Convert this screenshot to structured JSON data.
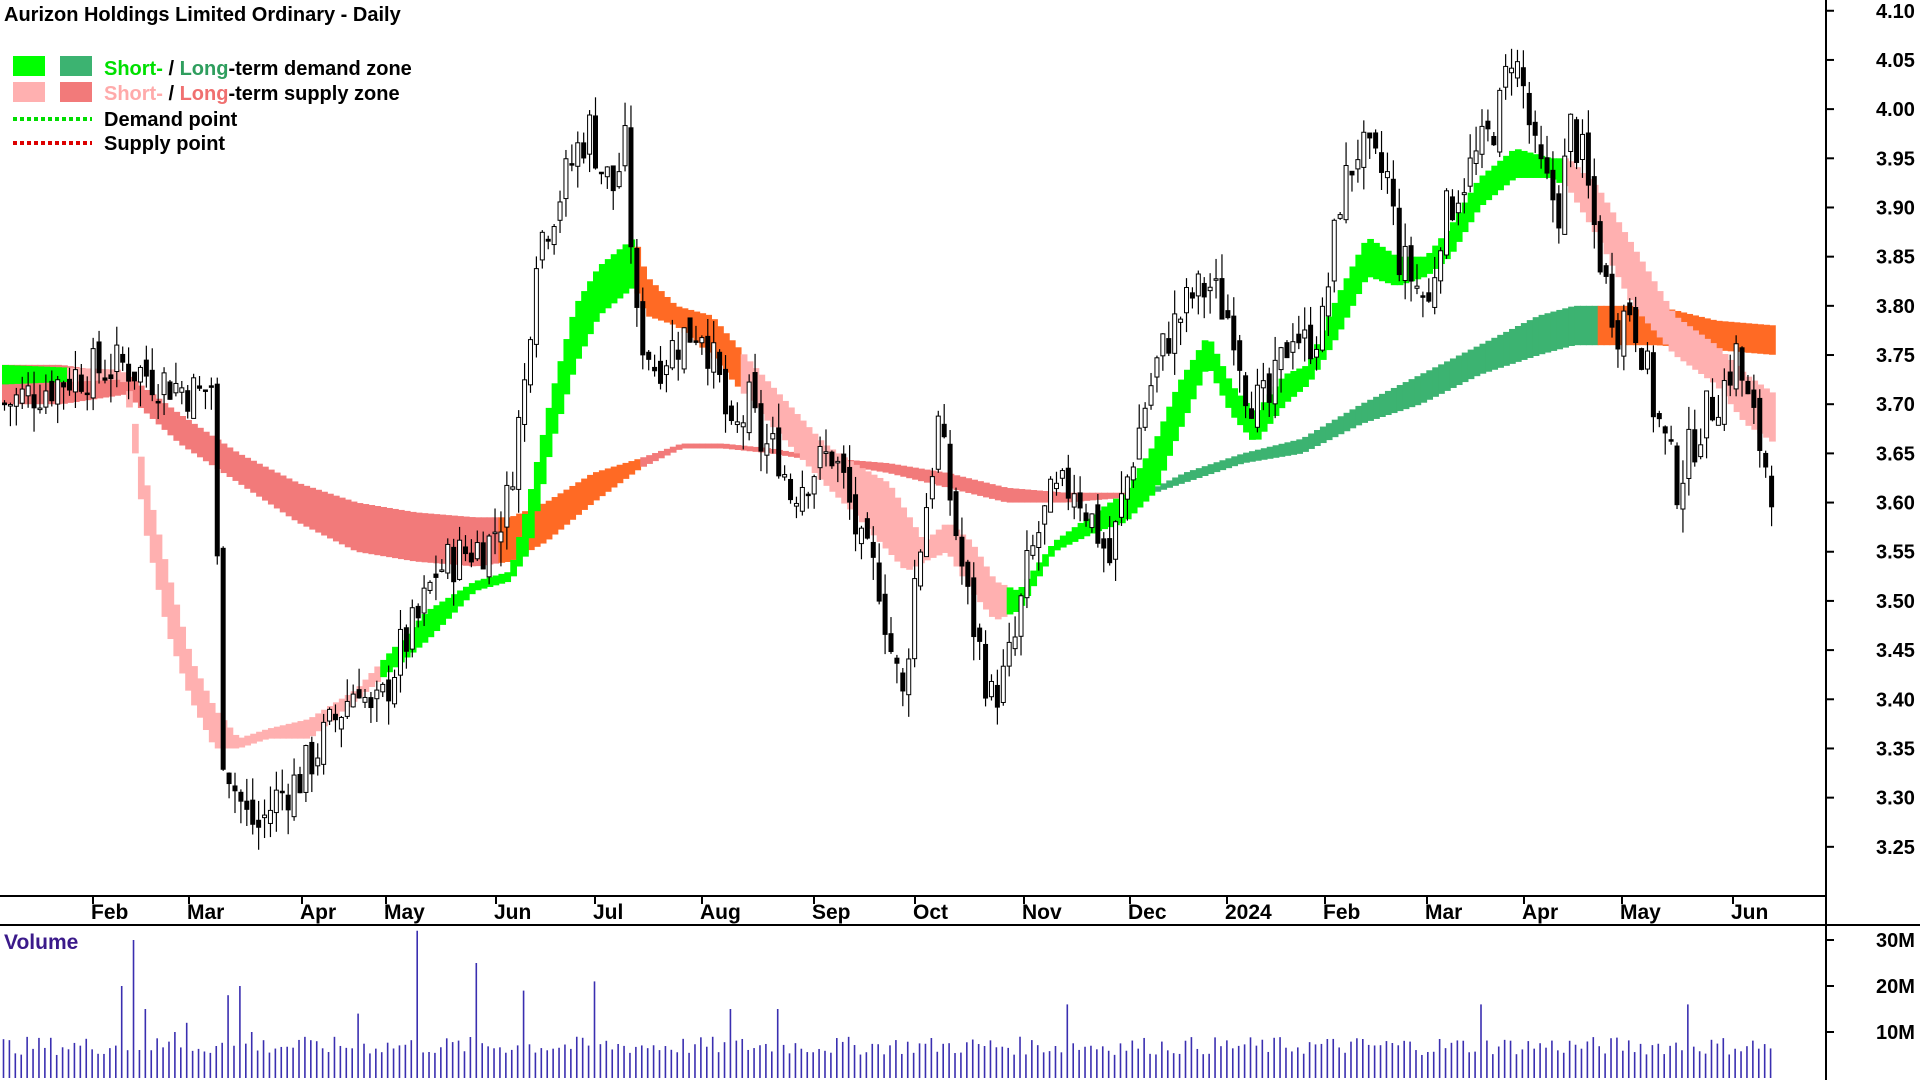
{
  "chart_data": {
    "type": "candlestick",
    "title": "Aurizon Holdings Limited Ordinary - Daily",
    "legend": {
      "placement": "top-left",
      "items": [
        {
          "short": "Short-",
          "sep": " / ",
          "long": "Long",
          "rest": "-term demand zone",
          "colors": [
            "#00ff00",
            "#3cb371"
          ]
        },
        {
          "short": "Short-",
          "sep": " / ",
          "long": "Long",
          "rest": "-term supply zone",
          "colors": [
            "#ffb0b0",
            "#f27a7a"
          ]
        },
        {
          "label": "Demand point",
          "color": "#00dd00"
        },
        {
          "label": "Supply point",
          "color": "#dd0000"
        }
      ]
    },
    "y_axis": {
      "side": "right",
      "ylim": [
        3.2,
        4.12
      ],
      "ticks": [
        "4.10",
        "4.05",
        "4.00",
        "3.95",
        "3.90",
        "3.85",
        "3.80",
        "3.75",
        "3.70",
        "3.65",
        "3.60",
        "3.55",
        "3.50",
        "3.45",
        "3.40",
        "3.35",
        "3.30",
        "3.25"
      ]
    },
    "x_axis": {
      "ticks": [
        "Feb",
        "Mar",
        "Apr",
        "May",
        "Jun",
        "Jul",
        "Aug",
        "Sep",
        "Oct",
        "Nov",
        "Dec",
        "2024",
        "Feb",
        "Mar",
        "Apr",
        "May",
        "Jun"
      ]
    },
    "close_path": [
      [
        0,
        3.7
      ],
      [
        12,
        3.73
      ],
      [
        20,
        3.74
      ],
      [
        33,
        3.71
      ],
      [
        35,
        3.72
      ],
      [
        37,
        3.35
      ],
      [
        39,
        3.31
      ],
      [
        41,
        3.28
      ],
      [
        43,
        3.27
      ],
      [
        46,
        3.3
      ],
      [
        50,
        3.32
      ],
      [
        56,
        3.38
      ],
      [
        60,
        3.42
      ],
      [
        62,
        3.38
      ],
      [
        64,
        3.4
      ],
      [
        67,
        3.45
      ],
      [
        70,
        3.48
      ],
      [
        73,
        3.53
      ],
      [
        78,
        3.55
      ],
      [
        82,
        3.56
      ],
      [
        85,
        3.6
      ],
      [
        88,
        3.72
      ],
      [
        90,
        3.86
      ],
      [
        93,
        3.9
      ],
      [
        95,
        3.93
      ],
      [
        97,
        3.96
      ],
      [
        99,
        3.98
      ],
      [
        101,
        3.94
      ],
      [
        103,
        3.92
      ],
      [
        105,
        3.96
      ],
      [
        107,
        3.78
      ],
      [
        110,
        3.74
      ],
      [
        115,
        3.77
      ],
      [
        118,
        3.78
      ],
      [
        121,
        3.72
      ],
      [
        123,
        3.66
      ],
      [
        126,
        3.7
      ],
      [
        128,
        3.66
      ],
      [
        131,
        3.65
      ],
      [
        133,
        3.61
      ],
      [
        136,
        3.63
      ],
      [
        140,
        3.65
      ],
      [
        142,
        3.62
      ],
      [
        145,
        3.55
      ],
      [
        148,
        3.52
      ],
      [
        150,
        3.45
      ],
      [
        152,
        3.4
      ],
      [
        154,
        3.52
      ],
      [
        156,
        3.6
      ],
      [
        158,
        3.68
      ],
      [
        161,
        3.57
      ],
      [
        163,
        3.5
      ],
      [
        165,
        3.45
      ],
      [
        167,
        3.4
      ],
      [
        169,
        3.42
      ],
      [
        171,
        3.46
      ],
      [
        173,
        3.53
      ],
      [
        175,
        3.57
      ],
      [
        177,
        3.6
      ],
      [
        181,
        3.62
      ],
      [
        185,
        3.57
      ],
      [
        187,
        3.54
      ],
      [
        189,
        3.6
      ],
      [
        191,
        3.65
      ],
      [
        193,
        3.7
      ],
      [
        195,
        3.74
      ],
      [
        197,
        3.77
      ],
      [
        199,
        3.79
      ],
      [
        201,
        3.81
      ],
      [
        204,
        3.82
      ],
      [
        206,
        3.8
      ],
      [
        208,
        3.78
      ],
      [
        210,
        3.72
      ],
      [
        212,
        3.7
      ],
      [
        214,
        3.7
      ],
      [
        216,
        3.74
      ],
      [
        218,
        3.78
      ],
      [
        220,
        3.76
      ],
      [
        223,
        3.78
      ],
      [
        226,
        3.91
      ],
      [
        229,
        3.96
      ],
      [
        232,
        3.94
      ],
      [
        234,
        3.93
      ],
      [
        236,
        3.85
      ],
      [
        239,
        3.82
      ],
      [
        241,
        3.8
      ],
      [
        243,
        3.88
      ],
      [
        246,
        3.92
      ],
      [
        249,
        3.95
      ],
      [
        251,
        3.97
      ],
      [
        253,
        4.0
      ],
      [
        255,
        4.06
      ],
      [
        257,
        4.02
      ],
      [
        259,
        3.95
      ],
      [
        261,
        3.92
      ],
      [
        263,
        3.9
      ],
      [
        265,
        3.98
      ],
      [
        267,
        3.95
      ],
      [
        269,
        3.88
      ],
      [
        271,
        3.82
      ],
      [
        273,
        3.78
      ],
      [
        275,
        3.8
      ],
      [
        277,
        3.76
      ],
      [
        279,
        3.7
      ],
      [
        281,
        3.66
      ],
      [
        283,
        3.62
      ],
      [
        285,
        3.65
      ],
      [
        287,
        3.68
      ],
      [
        289,
        3.7
      ],
      [
        291,
        3.72
      ],
      [
        293,
        3.75
      ],
      [
        295,
        3.7
      ],
      [
        297,
        3.66
      ],
      [
        299,
        3.62
      ]
    ],
    "short_zone": {
      "segments": [
        {
          "from": 0,
          "to": 11,
          "kind": "demand"
        },
        {
          "from": 11,
          "to": 36,
          "kind": "supply"
        },
        {
          "from": 36,
          "to": 64,
          "kind": "supply"
        },
        {
          "from": 64,
          "to": 107,
          "kind": "demand"
        },
        {
          "from": 107,
          "to": 125,
          "kind": "mixed"
        },
        {
          "from": 125,
          "to": 170,
          "kind": "supply"
        },
        {
          "from": 170,
          "to": 212,
          "kind": "demand"
        },
        {
          "from": 212,
          "to": 229,
          "kind": "demand"
        },
        {
          "from": 229,
          "to": 264,
          "kind": "demand"
        },
        {
          "from": 264,
          "to": 300,
          "kind": "supply"
        }
      ],
      "upper": [
        [
          0,
          3.74
        ],
        [
          20,
          3.735
        ],
        [
          21,
          3.73
        ],
        [
          24,
          3.63
        ],
        [
          28,
          3.53
        ],
        [
          32,
          3.44
        ],
        [
          36,
          3.39
        ],
        [
          40,
          3.36
        ],
        [
          45,
          3.37
        ],
        [
          52,
          3.38
        ],
        [
          60,
          3.41
        ],
        [
          66,
          3.45
        ],
        [
          72,
          3.49
        ],
        [
          80,
          3.52
        ],
        [
          86,
          3.53
        ],
        [
          89,
          3.6
        ],
        [
          93,
          3.71
        ],
        [
          97,
          3.8
        ],
        [
          101,
          3.84
        ],
        [
          107,
          3.87
        ],
        [
          109,
          3.83
        ],
        [
          114,
          3.8
        ],
        [
          120,
          3.79
        ],
        [
          127,
          3.74
        ],
        [
          133,
          3.7
        ],
        [
          139,
          3.66
        ],
        [
          144,
          3.64
        ],
        [
          150,
          3.62
        ],
        [
          153,
          3.59
        ],
        [
          156,
          3.56
        ],
        [
          160,
          3.58
        ],
        [
          164,
          3.56
        ],
        [
          168,
          3.52
        ],
        [
          172,
          3.51
        ],
        [
          178,
          3.56
        ],
        [
          185,
          3.59
        ],
        [
          190,
          3.61
        ],
        [
          195,
          3.66
        ],
        [
          199,
          3.72
        ],
        [
          204,
          3.77
        ],
        [
          208,
          3.72
        ],
        [
          212,
          3.69
        ],
        [
          217,
          3.73
        ],
        [
          221,
          3.74
        ],
        [
          226,
          3.81
        ],
        [
          231,
          3.87
        ],
        [
          236,
          3.85
        ],
        [
          241,
          3.85
        ],
        [
          245,
          3.88
        ],
        [
          250,
          3.93
        ],
        [
          256,
          3.96
        ],
        [
          262,
          3.95
        ],
        [
          265,
          3.95
        ],
        [
          270,
          3.92
        ],
        [
          276,
          3.86
        ],
        [
          283,
          3.79
        ],
        [
          290,
          3.76
        ],
        [
          295,
          3.73
        ],
        [
          300,
          3.71
        ]
      ],
      "lower": [
        [
          0,
          3.72
        ],
        [
          20,
          3.725
        ],
        [
          21,
          3.72
        ],
        [
          24,
          3.58
        ],
        [
          28,
          3.47
        ],
        [
          32,
          3.4
        ],
        [
          36,
          3.35
        ],
        [
          40,
          3.35
        ],
        [
          45,
          3.36
        ],
        [
          52,
          3.36
        ],
        [
          60,
          3.4
        ],
        [
          66,
          3.43
        ],
        [
          72,
          3.46
        ],
        [
          80,
          3.51
        ],
        [
          86,
          3.52
        ],
        [
          89,
          3.55
        ],
        [
          93,
          3.66
        ],
        [
          97,
          3.74
        ],
        [
          101,
          3.79
        ],
        [
          107,
          3.82
        ],
        [
          109,
          3.79
        ],
        [
          114,
          3.78
        ],
        [
          120,
          3.75
        ],
        [
          127,
          3.7
        ],
        [
          133,
          3.66
        ],
        [
          139,
          3.62
        ],
        [
          144,
          3.59
        ],
        [
          150,
          3.55
        ],
        [
          153,
          3.53
        ],
        [
          156,
          3.54
        ],
        [
          160,
          3.55
        ],
        [
          164,
          3.51
        ],
        [
          168,
          3.48
        ],
        [
          172,
          3.49
        ],
        [
          178,
          3.55
        ],
        [
          185,
          3.57
        ],
        [
          190,
          3.58
        ],
        [
          195,
          3.61
        ],
        [
          199,
          3.67
        ],
        [
          204,
          3.74
        ],
        [
          208,
          3.69
        ],
        [
          212,
          3.66
        ],
        [
          217,
          3.7
        ],
        [
          221,
          3.72
        ],
        [
          226,
          3.77
        ],
        [
          231,
          3.83
        ],
        [
          236,
          3.82
        ],
        [
          241,
          3.83
        ],
        [
          245,
          3.85
        ],
        [
          250,
          3.9
        ],
        [
          256,
          3.93
        ],
        [
          262,
          3.93
        ],
        [
          265,
          3.92
        ],
        [
          270,
          3.87
        ],
        [
          276,
          3.8
        ],
        [
          283,
          3.75
        ],
        [
          290,
          3.72
        ],
        [
          295,
          3.68
        ],
        [
          300,
          3.66
        ]
      ]
    },
    "long_zone": {
      "segments": [
        {
          "from": 0,
          "to": 21,
          "kind": "supply"
        },
        {
          "from": 21,
          "to": 84,
          "kind": "supply"
        },
        {
          "from": 84,
          "to": 108,
          "kind": "mixed"
        },
        {
          "from": 108,
          "to": 135,
          "kind": "supply"
        },
        {
          "from": 135,
          "to": 195,
          "kind": "supply"
        },
        {
          "from": 195,
          "to": 270,
          "kind": "demand"
        },
        {
          "from": 270,
          "to": 300,
          "kind": "mixed"
        }
      ],
      "upper": [
        [
          0,
          3.74
        ],
        [
          10,
          3.74
        ],
        [
          21,
          3.73
        ],
        [
          30,
          3.69
        ],
        [
          40,
          3.65
        ],
        [
          50,
          3.62
        ],
        [
          60,
          3.6
        ],
        [
          70,
          3.59
        ],
        [
          80,
          3.585
        ],
        [
          86,
          3.585
        ],
        [
          92,
          3.6
        ],
        [
          100,
          3.63
        ],
        [
          108,
          3.645
        ],
        [
          115,
          3.66
        ],
        [
          122,
          3.66
        ],
        [
          130,
          3.655
        ],
        [
          140,
          3.645
        ],
        [
          150,
          3.64
        ],
        [
          160,
          3.63
        ],
        [
          170,
          3.615
        ],
        [
          180,
          3.61
        ],
        [
          190,
          3.61
        ],
        [
          195,
          3.615
        ],
        [
          200,
          3.63
        ],
        [
          210,
          3.65
        ],
        [
          220,
          3.665
        ],
        [
          230,
          3.7
        ],
        [
          240,
          3.73
        ],
        [
          250,
          3.76
        ],
        [
          260,
          3.79
        ],
        [
          266,
          3.8
        ],
        [
          270,
          3.8
        ],
        [
          280,
          3.8
        ],
        [
          290,
          3.785
        ],
        [
          300,
          3.78
        ]
      ],
      "lower": [
        [
          0,
          3.7
        ],
        [
          10,
          3.7
        ],
        [
          21,
          3.71
        ],
        [
          30,
          3.66
        ],
        [
          40,
          3.62
        ],
        [
          50,
          3.58
        ],
        [
          60,
          3.55
        ],
        [
          70,
          3.54
        ],
        [
          80,
          3.535
        ],
        [
          86,
          3.54
        ],
        [
          92,
          3.56
        ],
        [
          100,
          3.6
        ],
        [
          108,
          3.635
        ],
        [
          115,
          3.655
        ],
        [
          122,
          3.655
        ],
        [
          130,
          3.65
        ],
        [
          140,
          3.64
        ],
        [
          150,
          3.63
        ],
        [
          160,
          3.615
        ],
        [
          170,
          3.6
        ],
        [
          180,
          3.6
        ],
        [
          190,
          3.605
        ],
        [
          195,
          3.61
        ],
        [
          200,
          3.62
        ],
        [
          210,
          3.64
        ],
        [
          220,
          3.65
        ],
        [
          230,
          3.68
        ],
        [
          240,
          3.7
        ],
        [
          250,
          3.73
        ],
        [
          260,
          3.75
        ],
        [
          266,
          3.76
        ],
        [
          270,
          3.76
        ],
        [
          280,
          3.76
        ],
        [
          290,
          3.755
        ],
        [
          300,
          3.75
        ]
      ]
    },
    "colors": {
      "short_demand": "#00ff00",
      "long_demand": "#3cb371",
      "short_supply": "#ffb0b0",
      "long_supply": "#f27a7a",
      "transition": "#ff6a24",
      "volume": "#3a2fb0"
    },
    "volume": {
      "label": "Volume",
      "ylim": [
        0,
        32
      ],
      "ticks": [
        "30M",
        "20M",
        "10M"
      ],
      "baseline_m": 5,
      "spikes": [
        [
          20,
          20
        ],
        [
          22,
          30
        ],
        [
          24,
          15
        ],
        [
          29,
          10
        ],
        [
          31,
          12
        ],
        [
          38,
          18
        ],
        [
          40,
          20
        ],
        [
          42,
          10
        ],
        [
          53,
          8
        ],
        [
          60,
          14
        ],
        [
          70,
          32
        ],
        [
          80,
          25
        ],
        [
          88,
          19
        ],
        [
          100,
          21
        ],
        [
          123,
          15
        ],
        [
          131,
          15
        ],
        [
          180,
          16
        ],
        [
          250,
          16
        ],
        [
          285,
          16
        ]
      ]
    }
  }
}
